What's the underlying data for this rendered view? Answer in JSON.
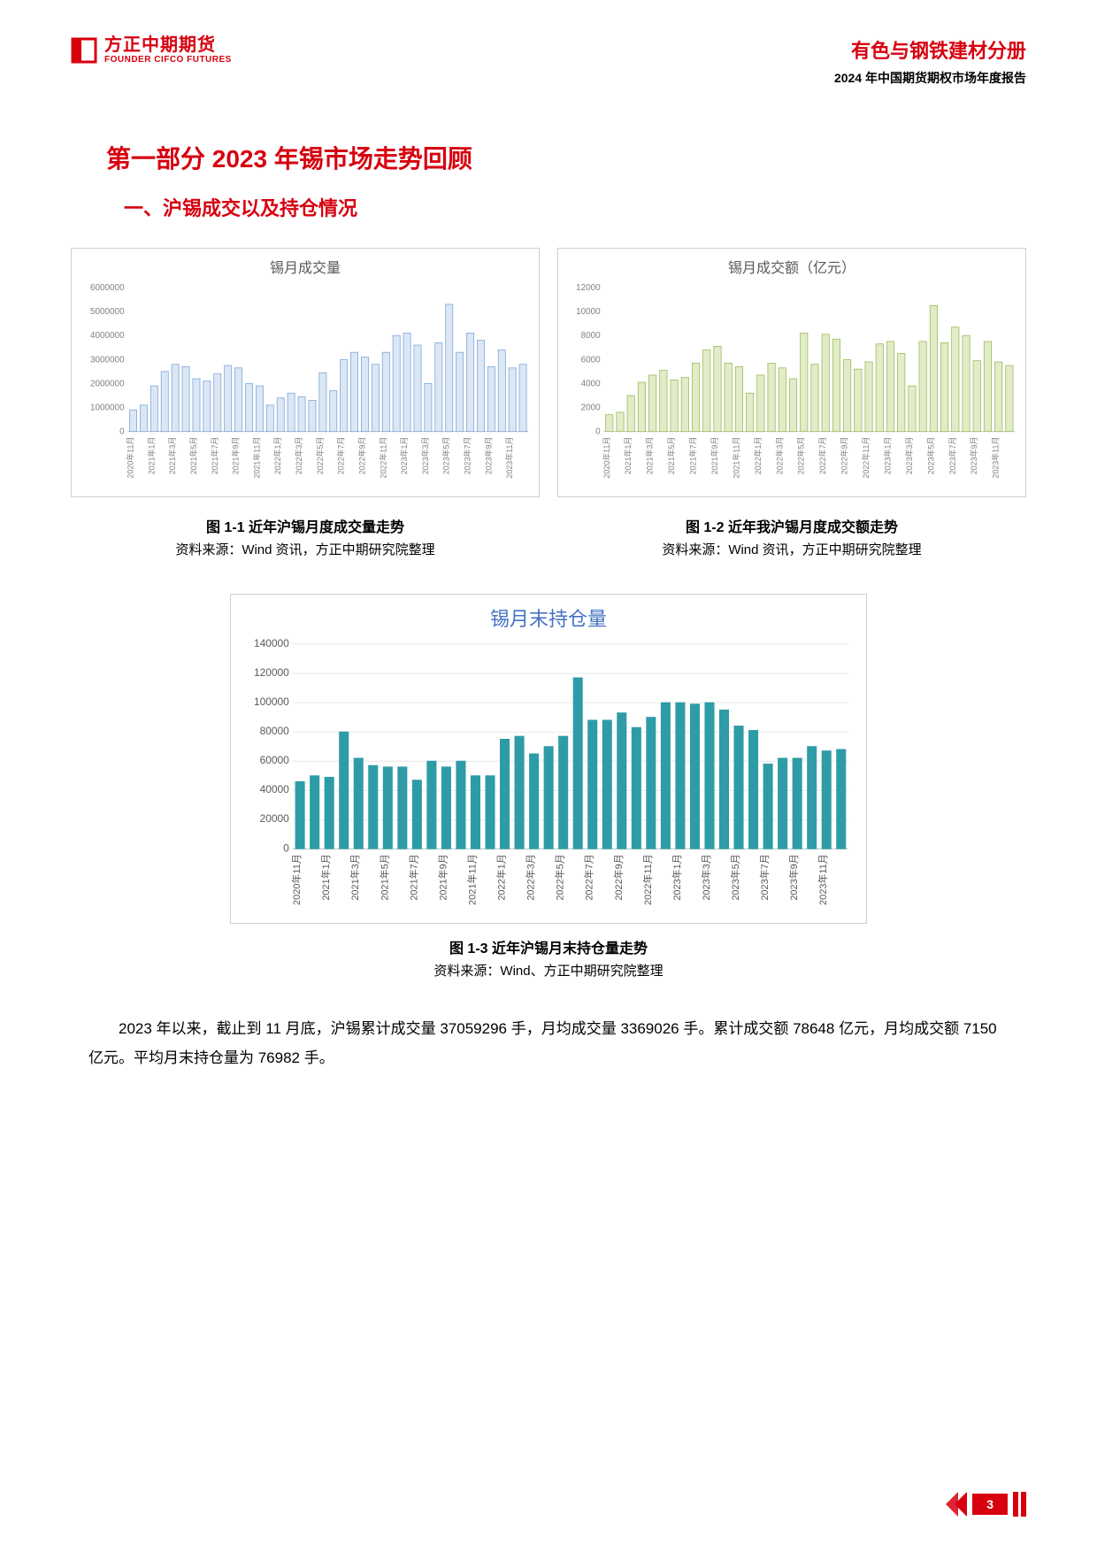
{
  "header": {
    "logo_cn": "方正中期期货",
    "logo_en": "FOUNDER CIFCO FUTURES",
    "logo_color": "#d7000f",
    "title": "有色与钢铁建材分册",
    "subtitle": "2024 年中国期货期权市场年度报告"
  },
  "section": {
    "title": "第一部分  2023 年锡市场走势回顾",
    "subsection": "一、沪锡成交以及持仓情况"
  },
  "chart1": {
    "type": "bar",
    "title": "锡月成交量",
    "border_color": "#cfcfcf",
    "bar_fill": "#dbe7f5",
    "bar_stroke": "#7da7d9",
    "axis_color": "#bfbfbf",
    "tick_color": "#808080",
    "title_color": "#595959",
    "ylim": [
      0,
      6000000
    ],
    "ytick_step": 1000000,
    "categories": [
      "2020年11月",
      "2021年1月",
      "2021年3月",
      "2021年5月",
      "2021年7月",
      "2021年9月",
      "2021年11月",
      "2022年1月",
      "2022年3月",
      "2022年5月",
      "2022年7月",
      "2022年9月",
      "2022年11月",
      "2023年1月",
      "2023年3月",
      "2023年5月",
      "2023年7月",
      "2023年9月",
      "2023年11月"
    ],
    "values": [
      900000,
      1100000,
      1900000,
      2500000,
      2800000,
      2700000,
      2200000,
      2100000,
      2400000,
      2750000,
      2650000,
      2000000,
      1900000,
      1100000,
      1400000,
      1600000,
      1450000,
      1300000,
      2450000,
      1700000,
      3000000,
      3300000,
      3100000,
      2800000,
      3300000,
      4000000,
      4100000,
      3600000,
      2000000,
      3700000,
      5300000,
      3300000,
      4100000,
      3800000,
      2700000,
      3400000,
      2650000,
      2800000
    ],
    "caption_title": "图 1-1 近年沪锡月度成交量走势",
    "caption_source": "资料来源：Wind 资讯，方正中期研究院整理"
  },
  "chart2": {
    "type": "bar",
    "title": "锡月成交额（亿元）",
    "border_color": "#cfcfcf",
    "bar_fill": "#e2ecc8",
    "bar_stroke": "#9bbb59",
    "axis_color": "#bfbfbf",
    "tick_color": "#808080",
    "title_color": "#595959",
    "ylim": [
      0,
      12000
    ],
    "ytick_step": 2000,
    "categories": [
      "2020年11月",
      "2021年1月",
      "2021年3月",
      "2021年5月",
      "2021年7月",
      "2021年9月",
      "2021年11月",
      "2022年1月",
      "2022年3月",
      "2022年5月",
      "2022年7月",
      "2022年9月",
      "2022年11月",
      "2023年1月",
      "2023年3月",
      "2023年5月",
      "2023年7月",
      "2023年9月",
      "2023年11月"
    ],
    "values": [
      1400,
      1600,
      3000,
      4100,
      4700,
      5100,
      4300,
      4500,
      5700,
      6800,
      7100,
      5700,
      5400,
      3200,
      4700,
      5700,
      5300,
      4400,
      8200,
      5600,
      8100,
      7700,
      6000,
      5200,
      5800,
      7300,
      7500,
      6500,
      3800,
      7500,
      10500,
      7400,
      8700,
      8000,
      5900,
      7500,
      5800,
      5500
    ],
    "caption_title": "图 1-2 近年我沪锡月度成交额走势",
    "caption_source": "资料来源：Wind 资讯，方正中期研究院整理"
  },
  "chart3": {
    "type": "bar",
    "title": "锡月末持仓量",
    "border_color": "#cfcfcf",
    "bar_fill": "#2e9ca6",
    "bar_stroke": "#2e9ca6",
    "axis_color": "#bfbfbf",
    "grid_color": "#d9d9d9",
    "tick_color": "#595959",
    "title_color": "#4472c4",
    "title_fontsize": 22,
    "ylim": [
      0,
      140000
    ],
    "ytick_step": 20000,
    "categories": [
      "2020年11月",
      "2021年1月",
      "2021年3月",
      "2021年5月",
      "2021年7月",
      "2021年9月",
      "2021年11月",
      "2022年1月",
      "2022年3月",
      "2022年5月",
      "2022年7月",
      "2022年9月",
      "2022年11月",
      "2023年1月",
      "2023年3月",
      "2023年5月",
      "2023年7月",
      "2023年9月",
      "2023年11月"
    ],
    "values": [
      46000,
      50000,
      49000,
      80000,
      62000,
      57000,
      56000,
      56000,
      47000,
      60000,
      56000,
      60000,
      50000,
      50000,
      75000,
      77000,
      65000,
      70000,
      77000,
      117000,
      88000,
      88000,
      93000,
      83000,
      90000,
      100000,
      100000,
      99000,
      100000,
      95000,
      84000,
      81000,
      58000,
      62000,
      62000,
      70000,
      67000,
      68000
    ],
    "caption_title": "图 1-3 近年沪锡月末持仓量走势",
    "caption_source": "资料来源：Wind、方正中期研究院整理"
  },
  "body_text": "2023 年以来，截止到 11 月底，沪锡累计成交量 37059296 手，月均成交量 3369026 手。累计成交额 78648 亿元，月均成交额 7150 亿元。平均月末持仓量为 76982 手。",
  "page_number": "3",
  "accent_color": "#d7000f"
}
